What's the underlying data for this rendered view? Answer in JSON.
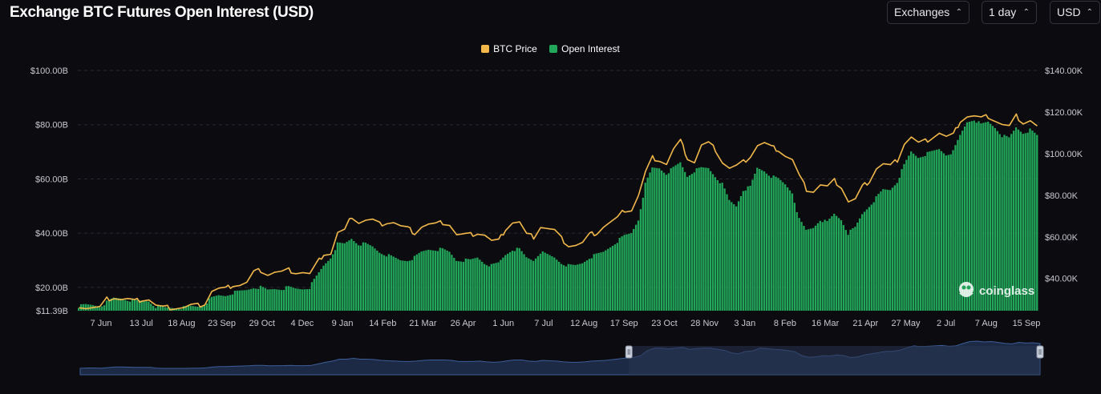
{
  "header": {
    "title": "Exchange BTC Futures Open Interest (USD)",
    "selects": [
      {
        "label": "Exchanges"
      },
      {
        "label": "1 day"
      },
      {
        "label": "USD"
      }
    ]
  },
  "watermark": "coinglass",
  "colors": {
    "background": "#0b0b10",
    "price": "#f2b84a",
    "open_interest": "#22a75a",
    "grid": "#2b2b33",
    "axis_text": "#c9c9cf",
    "navigator_fill": "#1c2a45",
    "navigator_line": "#3c5e9a",
    "navigator_window": "#2a3550"
  },
  "icons": {
    "select_chevron": "chevron-up-down-icon",
    "navigator_handle": "drag-handle-icon",
    "watermark_logo": "coinglass-logo-icon"
  },
  "chart_data": {
    "type": "bar",
    "title": "Exchange BTC Futures Open Interest (USD)",
    "legend_position": "top-center",
    "grid": true,
    "x_ticks": [
      "7 Jun",
      "13 Jul",
      "18 Aug",
      "23 Sep",
      "29 Oct",
      "4 Dec",
      "9 Jan",
      "14 Feb",
      "21 Mar",
      "26 Apr",
      "1 Jun",
      "7 Jul",
      "12 Aug",
      "17 Sep",
      "23 Oct",
      "28 Nov",
      "3 Jan",
      "8 Feb",
      "16 Mar",
      "21 Apr",
      "27 May",
      "2 Jul",
      "7 Aug",
      "15 Sep"
    ],
    "left_axis": {
      "ticks": [
        "$11.39B",
        "$20.00B",
        "$40.00B",
        "$60.00B",
        "$80.00B",
        "$100.00B"
      ],
      "tick_values": [
        11.39,
        20,
        40,
        60,
        80,
        100
      ],
      "range": [
        11.39,
        100
      ]
    },
    "right_axis": {
      "ticks": [
        "$40.00K",
        "$60.00K",
        "$80.00K",
        "$100.00K",
        "$120.00K",
        "$140.00K"
      ],
      "tick_values": [
        40,
        60,
        80,
        100,
        120,
        140
      ],
      "range": [
        24.5,
        140
      ]
    },
    "series": [
      {
        "name": "BTC Price",
        "type": "line",
        "axis": "right",
        "unit": "USD thousands",
        "values": [
          27,
          26,
          26,
          26,
          30,
          31,
          30,
          30,
          29,
          30,
          30,
          27,
          26,
          26,
          26,
          26,
          27,
          27,
          28,
          34,
          35,
          35,
          37,
          37,
          38,
          43,
          44,
          42,
          43,
          43,
          44,
          43,
          43,
          42,
          47,
          52,
          52,
          62,
          63,
          70,
          67,
          68,
          68,
          66,
          67,
          67,
          65,
          64,
          62,
          65,
          66,
          66,
          67,
          66,
          61,
          61,
          61,
          62,
          61,
          58,
          58,
          64,
          67,
          67,
          61,
          60,
          65,
          64,
          63,
          59,
          56,
          56,
          57,
          61,
          62,
          65,
          67,
          69,
          73,
          73,
          80,
          91,
          98,
          97,
          95,
          102,
          106,
          98,
          96,
          104,
          105,
          102,
          96,
          93,
          94,
          96,
          99,
          104,
          105,
          103,
          102,
          99,
          97,
          89,
          83,
          82,
          85,
          84,
          87,
          84,
          77,
          78,
          84,
          87,
          93,
          95,
          94,
          97,
          105,
          108,
          105,
          106,
          108,
          110,
          108,
          109,
          116,
          118,
          118,
          117,
          118,
          116,
          114,
          113,
          118,
          115,
          116,
          113
        ]
      },
      {
        "name": "Open Interest",
        "type": "bar",
        "axis": "left",
        "unit": "USD billions",
        "values": [
          13,
          13.5,
          13.5,
          13,
          14.5,
          16,
          16,
          15.5,
          15,
          15,
          15,
          13,
          12.5,
          12.5,
          12.5,
          12.5,
          13,
          13,
          14,
          16,
          17,
          17,
          18,
          18.5,
          19,
          20,
          20,
          19,
          19.5,
          19.5,
          20,
          19.5,
          19.5,
          20,
          24,
          28,
          31,
          36,
          36,
          38,
          36,
          36,
          35,
          33,
          32,
          31,
          30,
          30,
          31,
          33,
          34,
          34,
          34,
          33,
          30,
          30,
          30,
          31,
          29,
          28,
          29,
          32,
          34,
          34,
          31,
          30,
          33,
          32,
          31,
          29,
          28,
          28,
          29,
          31,
          32,
          33,
          35,
          37,
          39,
          40,
          45,
          58,
          64,
          64,
          62,
          64,
          66,
          61,
          63,
          64,
          64,
          61,
          58,
          52,
          50,
          56,
          57,
          64,
          63,
          61,
          60,
          58,
          55,
          45,
          41,
          42,
          45,
          44,
          47,
          45,
          40,
          42,
          47,
          50,
          53,
          56,
          56,
          59,
          65,
          70,
          68,
          69,
          70,
          71,
          69,
          70,
          76,
          81,
          82,
          80,
          81,
          79,
          76,
          75,
          79,
          77,
          78,
          76
        ]
      }
    ],
    "navigator": {
      "window_start_fraction": 0.58,
      "window_end_fraction": 1.0
    }
  }
}
